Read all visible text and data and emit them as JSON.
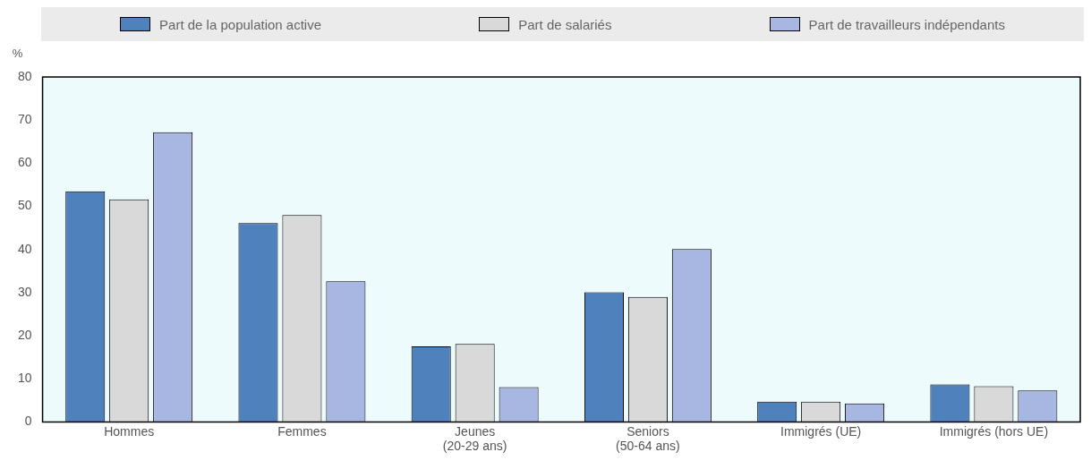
{
  "chart_data": {
    "type": "bar",
    "ylabel": "%",
    "categories": [
      "Hommes",
      "Femmes",
      "Jeunes\n(20-29 ans)",
      "Seniors\n(50-64 ans)",
      "Immigrés (UE)",
      "Immigrés (hors UE)"
    ],
    "series": [
      {
        "name": "Part de la population active",
        "color": "#4f81bd",
        "values": [
          53.5,
          46.1,
          17.5,
          30.1,
          4.7,
          8.7
        ]
      },
      {
        "name": "Part de salariés",
        "color": "#d9d9d9",
        "values": [
          51.6,
          48.0,
          18.1,
          29.0,
          4.7,
          8.3
        ]
      },
      {
        "name": "Part de travailleurs indépendants",
        "color": "#a7b7e2",
        "values": [
          67.2,
          32.6,
          8.1,
          40.1,
          4.3,
          7.3
        ]
      }
    ],
    "ylim": [
      0,
      80
    ],
    "yticks": [
      0,
      10,
      20,
      30,
      40,
      50,
      60,
      70,
      80
    ],
    "grid": false,
    "legend": "top"
  }
}
